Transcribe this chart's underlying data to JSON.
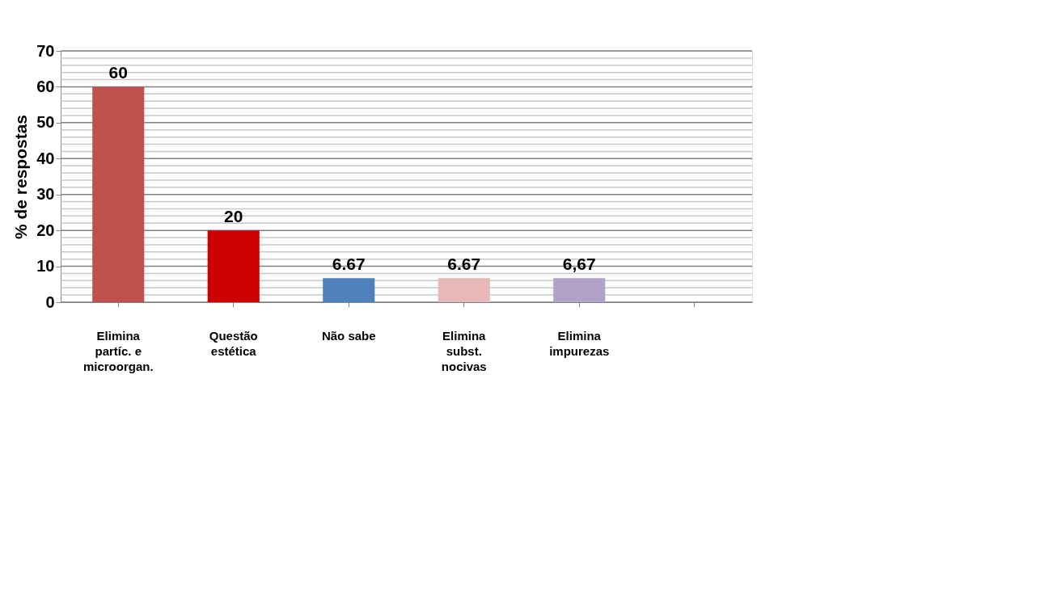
{
  "chart_data": {
    "type": "bar",
    "ylabel": "%  de respostas",
    "categories": [
      "Elimina\npartíc. e\nmicroorgan.",
      "Questão\nestética",
      "Não sabe",
      "Elimina\nsubst.\nnocivas",
      "Elimina\nimpurezas",
      null
    ],
    "values": [
      60,
      20,
      6.67,
      6.67,
      6.67,
      null
    ],
    "colors": [
      "#c0504d",
      "#cc0000",
      "#4f81bd",
      "#e6b9b8",
      "#b2a2c7",
      "#000000"
    ],
    "value_labels": [
      "60",
      "20",
      "6.67",
      "6.67",
      "6,67",
      null
    ],
    "ylim": [
      0,
      70
    ],
    "yticks": [
      0,
      {
        "value": 2,
        "label": null
      },
      {
        "value": 4,
        "label": null
      },
      {
        "value": 6,
        "label": null
      },
      {
        "value": 8,
        "label": null
      },
      10,
      {
        "value": 12,
        "label": null
      },
      {
        "value": 14,
        "label": null
      },
      {
        "value": 16,
        "label": null
      },
      {
        "value": 18,
        "label": null
      },
      20,
      {
        "value": 22,
        "label": null
      },
      {
        "value": 24,
        "label": null
      },
      {
        "value": 26,
        "label": null
      },
      {
        "value": 28,
        "label": null
      },
      30,
      {
        "value": 32,
        "label": null
      },
      {
        "value": 34,
        "label": null
      },
      {
        "value": 36,
        "label": null
      },
      {
        "value": 38,
        "label": null
      },
      40,
      {
        "value": 42,
        "label": null
      },
      {
        "value": 44,
        "label": null
      },
      {
        "value": 46,
        "label": null
      },
      {
        "value": 48,
        "label": null
      },
      50,
      {
        "value": 52,
        "label": null
      },
      {
        "value": 54,
        "label": null
      },
      {
        "value": 56,
        "label": null
      },
      {
        "value": 58,
        "label": null
      },
      60,
      {
        "value": 62,
        "label": null
      },
      {
        "value": 64,
        "label": null
      },
      {
        "value": 66,
        "label": null
      },
      {
        "value": 68,
        "label": null
      },
      70
    ],
    "grid": "y"
  }
}
